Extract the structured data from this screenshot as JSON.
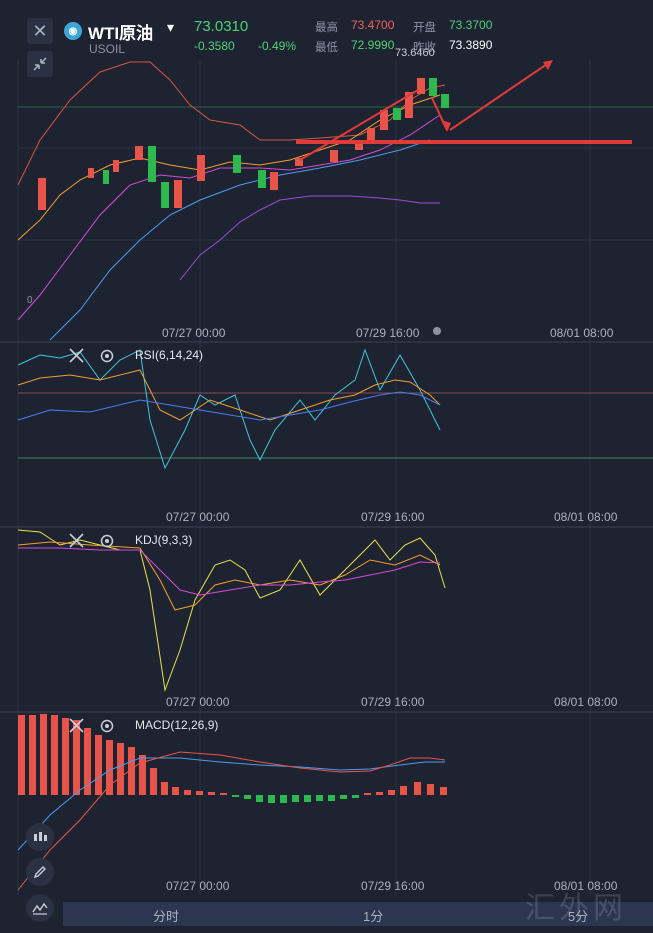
{
  "header": {
    "close_glyph": "✕",
    "logo_glyph": "◉",
    "symbol_name": "WTI原油",
    "symbol_code": "USOIL",
    "dropdown_glyph": "▾",
    "price": "73.0310",
    "change": "-0.3580",
    "change_pct": "-0.49%",
    "high_label": "最高",
    "high_value": "73.4700",
    "open_label": "开盘",
    "open_value": "73.3700",
    "low_label": "最低",
    "low_value": "72.9990",
    "prev_close_label": "昨收",
    "prev_close_value": "73.3890"
  },
  "main_chart": {
    "peak_label": "73.6460",
    "left_axis_tick": "0",
    "time_labels": [
      "07/27 00:00",
      "07/29 16:00",
      "08/01 08:00"
    ]
  },
  "rsi_panel": {
    "title": "RSI(6,14,24)",
    "time_labels": [
      "07/27 00:00",
      "07/29 16:00",
      "08/01 08:00"
    ]
  },
  "kdj_panel": {
    "title": "KDJ(9,3,3)",
    "time_labels": [
      "07/27 00:00",
      "07/29 16:00",
      "08/01 08:00"
    ]
  },
  "macd_panel": {
    "title": "MACD(12,26,9)",
    "time_labels": [
      "07/27 00:00",
      "07/29 16:00",
      "08/01 08:00"
    ]
  },
  "bottom_tabs": [
    "分时",
    "1分",
    "5分"
  ],
  "watermark": "汇外网",
  "colors": {
    "up": "#e8544a",
    "down": "#2fb84e",
    "price_green": "#4fd17a",
    "high_red": "#f0605a",
    "bg": "#1e2331",
    "tab_bar": "#2d3650"
  }
}
